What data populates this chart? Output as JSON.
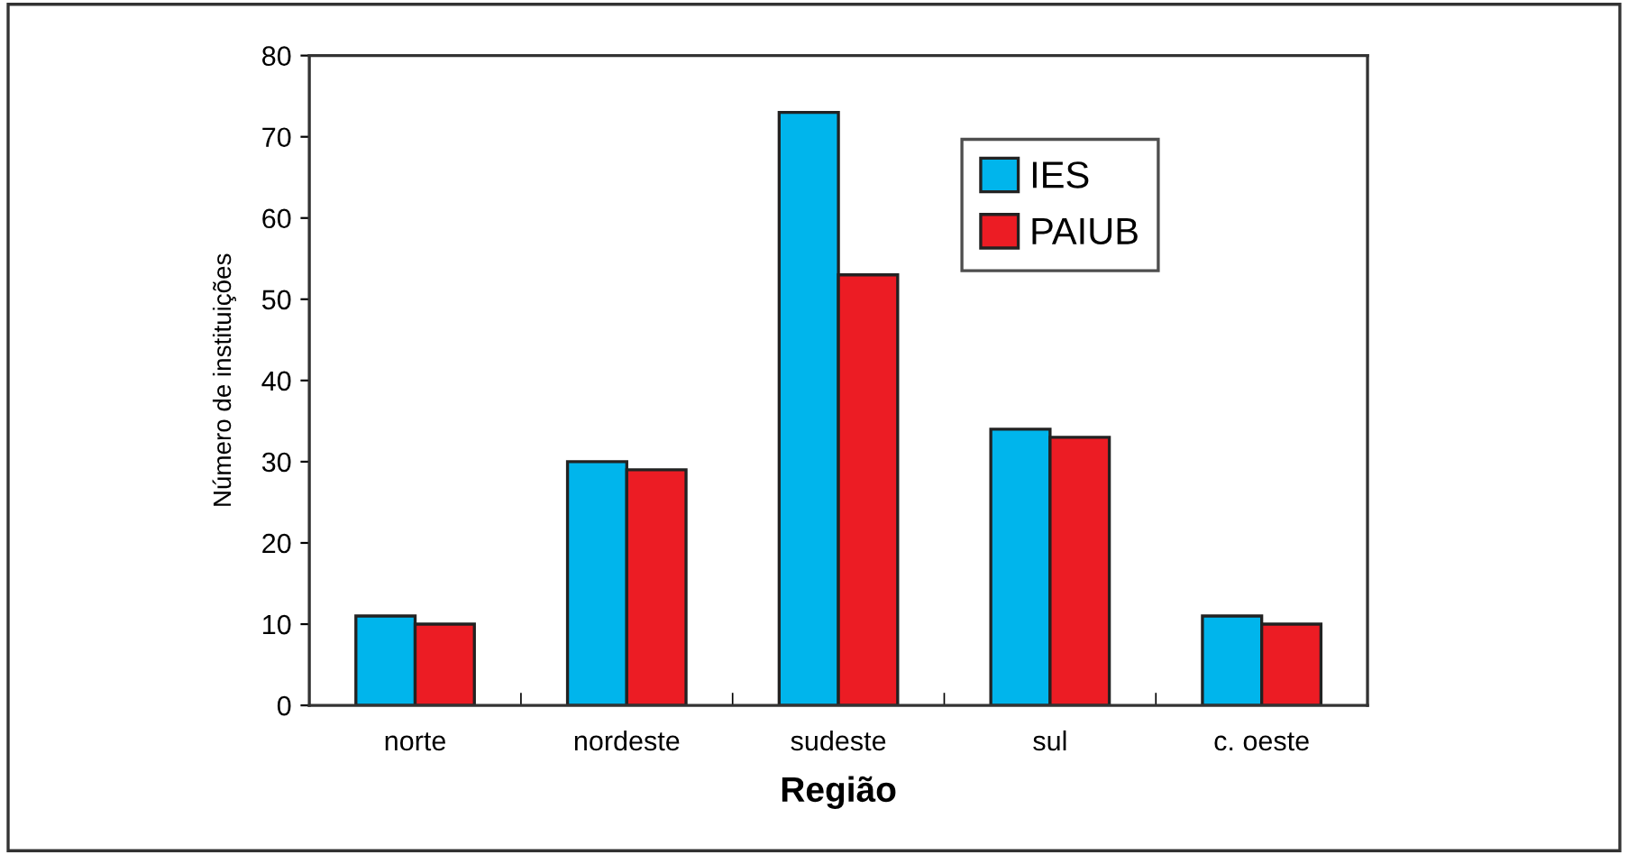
{
  "chart_data": {
    "type": "bar",
    "xlabel": "Região",
    "ylabel": "Número de instituições",
    "categories": [
      "norte",
      "nordeste",
      "sudeste",
      "sul",
      "c. oeste"
    ],
    "series": [
      {
        "name": "IES",
        "color": "#00b5ec",
        "values": [
          11,
          30,
          73,
          34,
          11
        ]
      },
      {
        "name": "PAIUB",
        "color": "#ec1c24",
        "values": [
          10,
          29,
          53,
          33,
          10
        ]
      }
    ],
    "ylim": [
      0,
      80
    ],
    "yticks": [
      0,
      10,
      20,
      30,
      40,
      50,
      60,
      70,
      80
    ],
    "grid": false,
    "legend": "top right"
  }
}
